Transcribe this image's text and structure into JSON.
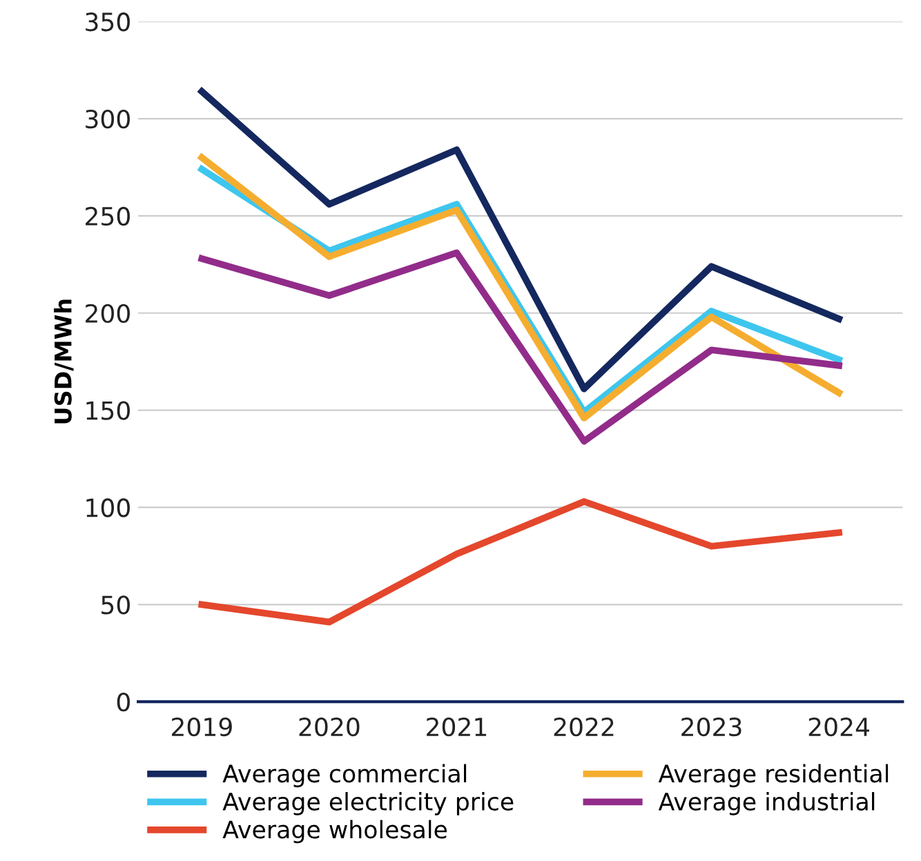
{
  "chart_data": {
    "type": "line",
    "ylabel": "USD/MWh",
    "categories": [
      "2019",
      "2020",
      "2021",
      "2022",
      "2023",
      "2024"
    ],
    "series": [
      {
        "name": "Average commercial",
        "color": "#14285f",
        "values": [
          314,
          256,
          284,
          161,
          224,
          197
        ]
      },
      {
        "name": "Average electricity price",
        "color": "#3ec6ee",
        "values": [
          274,
          232,
          256,
          149,
          201,
          176
        ]
      },
      {
        "name": "Average wholesale",
        "color": "#e4472c",
        "values": [
          50,
          41,
          76,
          103,
          80,
          87
        ]
      },
      {
        "name": "Average residential",
        "color": "#f5ad2f",
        "values": [
          280,
          229,
          253,
          146,
          198,
          159
        ]
      },
      {
        "name": "Average industrial",
        "color": "#922c8a",
        "values": [
          228,
          209,
          231,
          134,
          181,
          173
        ]
      }
    ],
    "ylim": [
      0,
      350
    ],
    "yticks": [
      0,
      50,
      100,
      150,
      200,
      250,
      300,
      350
    ],
    "grid": "y",
    "legend": "bottom",
    "marker": "none",
    "line_style": "solid"
  }
}
